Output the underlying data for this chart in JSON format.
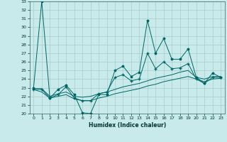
{
  "xlabel": "Humidex (Indice chaleur)",
  "xlim": [
    -0.5,
    23.5
  ],
  "ylim": [
    20,
    33
  ],
  "yticks": [
    20,
    21,
    22,
    23,
    24,
    25,
    26,
    27,
    28,
    29,
    30,
    31,
    32,
    33
  ],
  "xticks": [
    0,
    1,
    2,
    3,
    4,
    5,
    6,
    7,
    8,
    9,
    10,
    11,
    12,
    13,
    14,
    15,
    16,
    17,
    18,
    19,
    20,
    21,
    22,
    23
  ],
  "background_color": "#c8eaea",
  "line_color": "#006666",
  "grid_color": "#a8cccc",
  "line1_x": [
    0,
    1,
    2,
    3,
    4,
    5,
    6,
    7,
    8,
    9,
    10,
    11,
    12,
    13,
    14,
    15,
    16,
    17,
    18,
    19,
    20,
    21,
    22,
    23
  ],
  "line1_y": [
    23.0,
    33.0,
    21.8,
    22.8,
    23.3,
    22.2,
    20.1,
    20.0,
    22.2,
    22.2,
    25.0,
    25.5,
    24.3,
    24.8,
    30.8,
    27.0,
    28.7,
    26.3,
    26.3,
    27.5,
    24.2,
    23.5,
    24.7,
    24.2
  ],
  "line2_x": [
    0,
    1,
    2,
    3,
    4,
    5,
    6,
    7,
    8,
    9,
    10,
    11,
    12,
    13,
    14,
    15,
    16,
    17,
    18,
    19,
    20,
    21,
    22,
    23
  ],
  "line2_y": [
    22.8,
    22.5,
    21.8,
    22.0,
    22.2,
    21.7,
    21.5,
    21.5,
    21.8,
    22.0,
    22.3,
    22.5,
    22.7,
    22.9,
    23.2,
    23.4,
    23.7,
    23.9,
    24.1,
    24.3,
    24.0,
    23.7,
    24.0,
    24.1
  ],
  "line3_x": [
    0,
    1,
    2,
    3,
    4,
    5,
    6,
    7,
    8,
    9,
    10,
    11,
    12,
    13,
    14,
    15,
    16,
    17,
    18,
    19,
    20,
    21,
    22,
    23
  ],
  "line3_y": [
    22.8,
    22.8,
    21.8,
    22.2,
    23.1,
    21.8,
    21.5,
    21.5,
    22.3,
    22.5,
    24.2,
    24.5,
    23.8,
    24.0,
    27.0,
    25.2,
    26.0,
    25.2,
    25.3,
    25.8,
    24.0,
    23.5,
    24.2,
    24.2
  ],
  "line4_x": [
    0,
    1,
    2,
    3,
    4,
    5,
    6,
    7,
    8,
    9,
    10,
    11,
    12,
    13,
    14,
    15,
    16,
    17,
    18,
    19,
    20,
    21,
    22,
    23
  ],
  "line4_y": [
    22.9,
    22.9,
    22.0,
    22.3,
    22.5,
    22.0,
    21.9,
    22.0,
    22.3,
    22.5,
    22.8,
    23.1,
    23.3,
    23.5,
    23.8,
    24.1,
    24.3,
    24.5,
    24.8,
    25.0,
    24.2,
    24.0,
    24.3,
    24.3
  ]
}
